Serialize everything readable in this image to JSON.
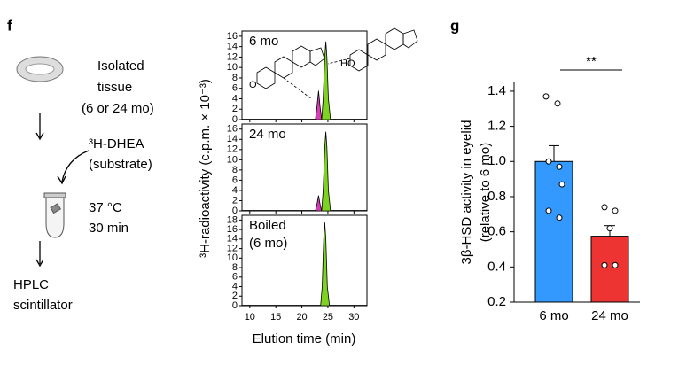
{
  "panel_labels": [
    "f",
    "g"
  ],
  "schematic": {
    "step1": [
      "Isolated",
      "tissue",
      "(6 or 24 mo)"
    ],
    "step2": [
      "³H-DHEA",
      "(substrate)"
    ],
    "step3": [
      "37 °C",
      "30 min"
    ],
    "step4": [
      "HPLC",
      "scintillator"
    ]
  },
  "figure": {
    "ylabel": "³H-radioactivity (c.p.m. × 10⁻³)",
    "xlabel": "Elution time (min)"
  },
  "chart_data": [
    {
      "type": "area",
      "title_lines": [
        "6 mo"
      ],
      "xlim": [
        8.5,
        32.5
      ],
      "xticks": [
        10,
        15,
        20,
        25,
        30
      ],
      "show_xtick_labels": false,
      "ylim": [
        0,
        17
      ],
      "yticks": [
        0,
        2,
        4,
        6,
        8,
        10,
        12,
        14,
        16
      ],
      "series": [
        {
          "color": "#d63cb4",
          "x": [
            22.6,
            22.9,
            23.2,
            23.5,
            23.8
          ],
          "values": [
            0,
            2.5,
            5.5,
            2.5,
            0
          ]
        },
        {
          "color": "#7ed321",
          "x": [
            23.8,
            24.1,
            24.4,
            24.6,
            24.8,
            25.1,
            25.5
          ],
          "values": [
            0,
            4,
            12,
            15,
            12,
            4,
            0
          ]
        }
      ]
    },
    {
      "type": "area",
      "title_lines": [
        "24 mo"
      ],
      "xlim": [
        8.5,
        32.5
      ],
      "xticks": [
        10,
        15,
        20,
        25,
        30
      ],
      "show_xtick_labels": false,
      "ylim": [
        0,
        17
      ],
      "yticks": [
        0,
        2,
        4,
        6,
        8,
        10,
        12,
        14,
        16
      ],
      "series": [
        {
          "color": "#d63cb4",
          "x": [
            22.6,
            22.9,
            23.2,
            23.5,
            23.8
          ],
          "values": [
            0,
            1.3,
            3,
            1.3,
            0
          ]
        },
        {
          "color": "#7ed321",
          "x": [
            23.8,
            24.1,
            24.4,
            24.6,
            24.8,
            25.1,
            25.5
          ],
          "values": [
            0,
            4,
            12.5,
            15.5,
            12.5,
            4,
            0
          ]
        }
      ]
    },
    {
      "type": "area",
      "title_lines": [
        "Boiled",
        "(6 mo)"
      ],
      "xlim": [
        8.5,
        32.5
      ],
      "xticks": [
        10,
        15,
        20,
        25,
        30
      ],
      "show_xtick_labels": true,
      "ylim": [
        0,
        19
      ],
      "yticks": [
        0,
        2,
        4,
        6,
        8,
        10,
        12,
        14,
        16,
        18
      ],
      "series": [
        {
          "color": "#7ed321",
          "x": [
            23.6,
            23.9,
            24.2,
            24.4,
            24.6,
            24.9,
            25.3
          ],
          "values": [
            0,
            4,
            14,
            17.5,
            14,
            4,
            0
          ]
        }
      ]
    },
    {
      "type": "bar",
      "ylabel_lines": [
        "3β-HSD activity in eyelid",
        "(relative to 6 mo)"
      ],
      "categories": [
        "6 mo",
        "24 mo"
      ],
      "values": [
        1.0,
        0.575
      ],
      "errors": [
        0.09,
        0.06
      ],
      "colors": [
        "#3399ff",
        "#ee3333"
      ],
      "points": [
        [
          1.37,
          1.33,
          1.0,
          0.97,
          0.87,
          0.72,
          0.68
        ],
        [
          0.74,
          0.72,
          0.62,
          0.41,
          0.41
        ]
      ],
      "ylim": [
        0.2,
        1.45
      ],
      "yticks": [
        0.2,
        0.4,
        0.6,
        0.8,
        {
          "value": 1,
          "label": "1.0"
        },
        1.2,
        1.4
      ],
      "significance": "**"
    }
  ]
}
